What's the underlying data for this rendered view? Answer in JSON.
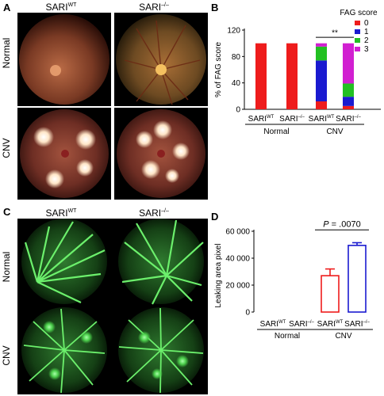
{
  "panels": {
    "A": {
      "letter": "A",
      "columns": [
        "SARI",
        "SARI"
      ],
      "column_sups": [
        "WT",
        "–/–"
      ],
      "rows": [
        "Normal",
        "CNV"
      ]
    },
    "B": {
      "letter": "B"
    },
    "C": {
      "letter": "C",
      "columns": [
        "SARI",
        "SARI"
      ],
      "column_sups": [
        "WT",
        "–/–"
      ],
      "rows": [
        "Normal",
        "CNV"
      ]
    },
    "D": {
      "letter": "D"
    }
  },
  "colors": {
    "score0": "#ee1c1c",
    "score1": "#1a1ad0",
    "score2": "#22c022",
    "score3": "#d11fd1",
    "wt_bar": "#ee1c1c",
    "ko_bar": "#1a1ad0"
  },
  "chart_data": [
    {
      "type": "bar",
      "stacked": true,
      "panel": "B",
      "ylabel": "% of FAG score",
      "yticks": [
        0,
        40,
        80,
        120
      ],
      "ylim": [
        0,
        120
      ],
      "legend_title": "FAG score",
      "legend_position": "top-right",
      "categories": [
        "SARI|WT",
        "SARI|–/–",
        "SARI|WT",
        "SARI|–/–"
      ],
      "groups": [
        {
          "label": "Normal",
          "members": [
            0,
            1
          ]
        },
        {
          "label": "CNV",
          "members": [
            2,
            3
          ]
        }
      ],
      "series": [
        {
          "name": "0",
          "values": [
            100,
            100,
            12,
            5
          ]
        },
        {
          "name": "1",
          "values": [
            0,
            0,
            62,
            14
          ]
        },
        {
          "name": "2",
          "values": [
            0,
            0,
            21,
            20
          ]
        },
        {
          "name": "3",
          "values": [
            0,
            0,
            5,
            61
          ]
        }
      ],
      "annotations": [
        {
          "text": "**",
          "between": [
            2,
            3
          ]
        }
      ]
    },
    {
      "type": "bar",
      "panel": "D",
      "ylabel": "Leaking area pixel",
      "yticks": [
        0,
        20000,
        40000,
        60000
      ],
      "ytick_labels": [
        "0",
        "20 000",
        "40 000",
        "60 000"
      ],
      "ylim": [
        0,
        60000
      ],
      "categories": [
        "SARI|WT",
        "SARI|–/–",
        "SARI|WT",
        "SARI|–/–"
      ],
      "groups": [
        {
          "label": "Normal",
          "members": [
            0,
            1
          ]
        },
        {
          "label": "CNV",
          "members": [
            2,
            3
          ]
        }
      ],
      "values": [
        0,
        0,
        27000,
        49500
      ],
      "errors": [
        0,
        0,
        5000,
        2000
      ],
      "annotations": [
        {
          "text_italic": "P",
          "text": " = .0070",
          "between": [
            2,
            3
          ]
        }
      ]
    }
  ]
}
